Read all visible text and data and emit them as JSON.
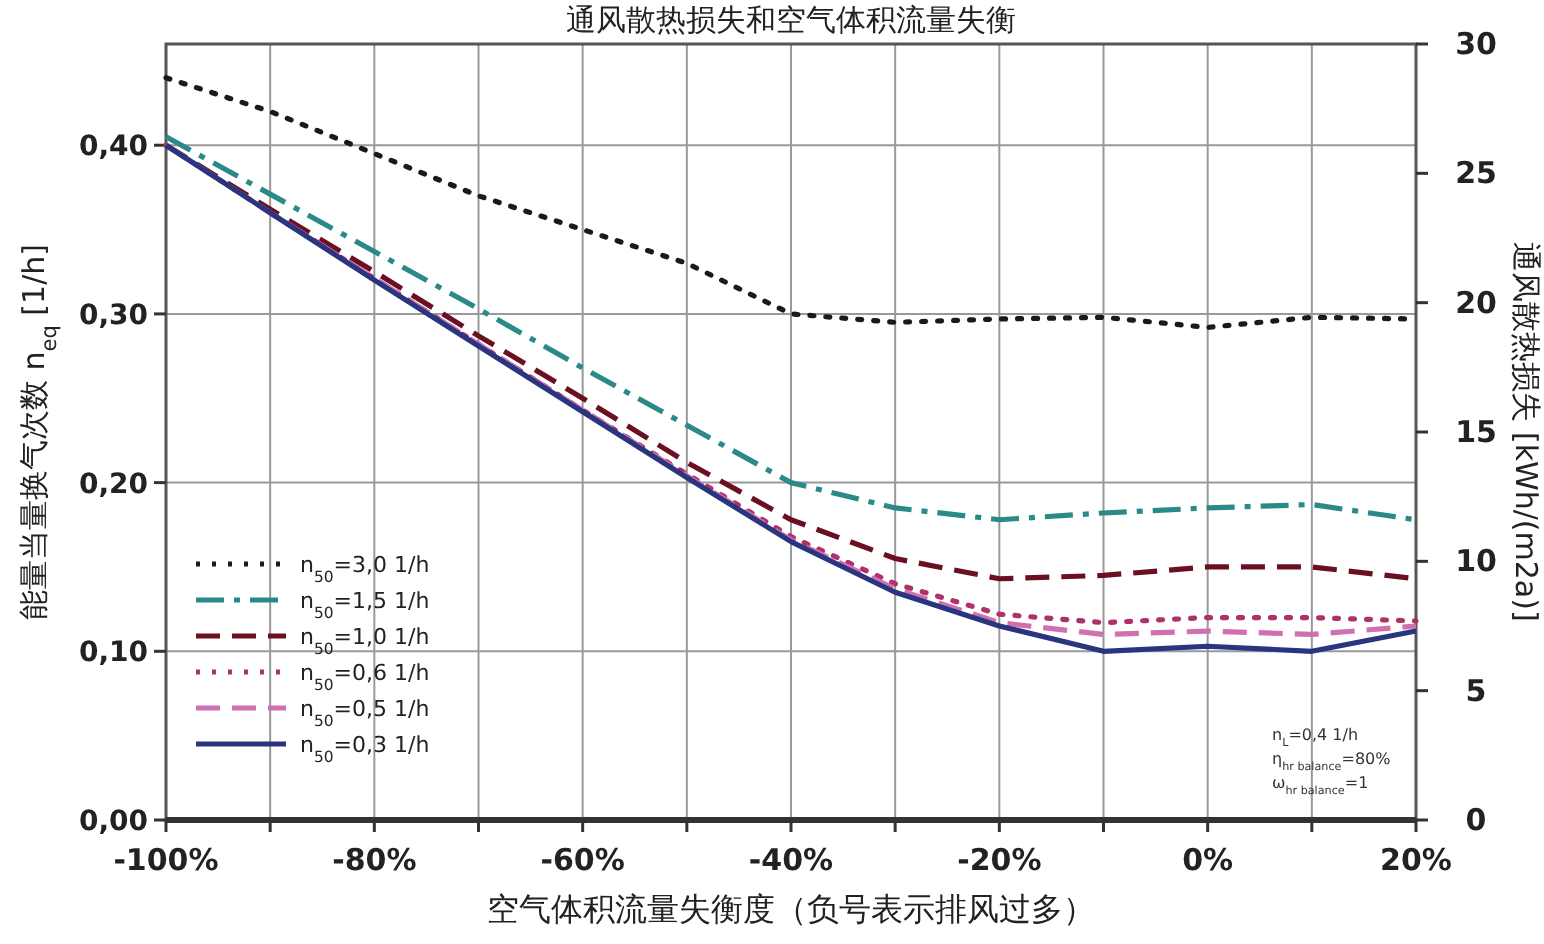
{
  "chart_data": {
    "type": "line",
    "title": "通风散热损失和空气体积流量失衡",
    "xlabel": "空气体积流量失衡度（负号表示排风过多）",
    "ylabel": "能量当量换气次数 n$_{eq}$ [1/h]",
    "y2label": "通风散热损失 [kWh/(m2a)]",
    "x": [
      -100,
      -90,
      -80,
      -70,
      -60,
      -50,
      -40,
      -30,
      -20,
      -10,
      0,
      10,
      20
    ],
    "xlim": [
      -100,
      20
    ],
    "xticks": [
      {
        "value": -100,
        "label": "-100%"
      },
      {
        "value": -90,
        "label": null
      },
      {
        "value": -80,
        "label": "-80%"
      },
      {
        "value": -70,
        "label": null
      },
      {
        "value": -60,
        "label": "-60%"
      },
      {
        "value": -50,
        "label": null
      },
      {
        "value": -40,
        "label": "-40%"
      },
      {
        "value": -30,
        "label": null
      },
      {
        "value": -20,
        "label": "-20%"
      },
      {
        "value": -10,
        "label": null
      },
      {
        "value": 0,
        "label": "0%"
      },
      {
        "value": 10,
        "label": null
      },
      {
        "value": 20,
        "label": "20%"
      }
    ],
    "ylim": [
      0,
      0.46
    ],
    "yticks": [
      {
        "value": 0,
        "label": "0,00"
      },
      {
        "value": 0.1,
        "label": "0,10"
      },
      {
        "value": 0.2,
        "label": "0,20"
      },
      {
        "value": 0.3,
        "label": "0,30"
      },
      {
        "value": 0.4,
        "label": "0,40"
      }
    ],
    "y2lim": [
      0,
      30
    ],
    "y2ticks": [
      0,
      5,
      10,
      15,
      20,
      25,
      30
    ],
    "grid": true,
    "legend": "bottom left",
    "marker": "none",
    "series": [
      {
        "name": "n$_{50}$=3,0 1/h",
        "color": "#1a1a1a",
        "line_style": "dotted",
        "values": [
          0.44,
          0.42,
          0.395,
          0.37,
          0.35,
          0.33,
          0.3,
          0.295,
          0.297,
          0.298,
          0.292,
          0.298,
          0.297
        ]
      },
      {
        "name": "n$_{50}$=1,5 1/h",
        "color": "#2a8a88",
        "line_style": "dashdot",
        "values": [
          0.405,
          0.371,
          0.337,
          0.303,
          0.268,
          0.234,
          0.2,
          0.185,
          0.178,
          0.182,
          0.185,
          0.187,
          0.178
        ]
      },
      {
        "name": "n$_{50}$=1,0 1/h",
        "color": "#6b1020",
        "line_style": "dashed",
        "values": [
          0.4,
          0.362,
          0.325,
          0.287,
          0.25,
          0.212,
          0.178,
          0.155,
          0.143,
          0.145,
          0.15,
          0.15,
          0.143
        ]
      },
      {
        "name": "n$_{50}$=0,6 1/h",
        "color": "#b0306a",
        "line_style": "dotted",
        "values": [
          0.4,
          0.36,
          0.321,
          0.282,
          0.243,
          0.205,
          0.168,
          0.14,
          0.122,
          0.117,
          0.12,
          0.12,
          0.118
        ]
      },
      {
        "name": "n$_{50}$=0,5 1/h",
        "color": "#d070b0",
        "line_style": "dashed",
        "values": [
          0.4,
          0.36,
          0.321,
          0.282,
          0.243,
          0.204,
          0.166,
          0.137,
          0.117,
          0.11,
          0.112,
          0.11,
          0.115
        ]
      },
      {
        "name": "n$_{50}$=0,3 1/h",
        "color": "#2a3580",
        "line_style": "solid",
        "values": [
          0.4,
          0.36,
          0.32,
          0.281,
          0.242,
          0.203,
          0.165,
          0.135,
          0.115,
          0.1,
          0.103,
          0.1,
          0.112
        ]
      }
    ],
    "annotations": [
      "n$_{L}$=0,4 1/h",
      "η$_{hr balance}$=80%",
      "ω$_{hr balance}$=1"
    ]
  }
}
